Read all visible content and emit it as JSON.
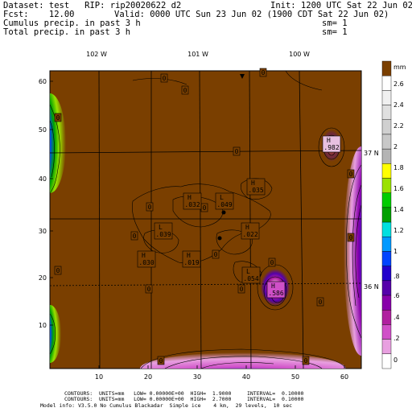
{
  "header": {
    "dataset_line": "Dataset: test   RIP: rip20020622 d2",
    "init_line": "Init: 1200 UTC Sat 22 Jun 02",
    "fcst_line": "Fcst:    12.00",
    "valid_line": "Valid: 0000 UTC Sun 23 Jun 02 (1900 CDT Sat 22 Jun 02)",
    "field1_line": "Cumulus precip. in past 3 h",
    "field1_sm": "sm= 1",
    "field2_line": "Total precip. in past 3 h",
    "field2_sm": "sm= 1"
  },
  "map": {
    "background_color": "#7a3f00",
    "longitude_labels": [
      "102 W",
      "101 W",
      "100 W"
    ],
    "latitude_labels": [
      "37 N",
      "36 N"
    ],
    "x_ticks": [
      "10",
      "20",
      "30",
      "40",
      "50",
      "60"
    ],
    "y_ticks": [
      "10",
      "20",
      "30",
      "40",
      "50",
      "60"
    ],
    "zero_labels": [
      "0",
      "0",
      "0",
      "0",
      "0",
      "0",
      "0",
      "0",
      "0",
      "0",
      "0",
      "0",
      "0",
      "0",
      "0",
      "0",
      "0",
      "0"
    ],
    "extrema": [
      {
        "kind": "H",
        "value": ".032"
      },
      {
        "kind": "L",
        "value": ".049"
      },
      {
        "kind": "H",
        "value": ".035"
      },
      {
        "kind": "L",
        "value": ".039"
      },
      {
        "kind": "H",
        "value": ".022"
      },
      {
        "kind": "H",
        "value": ".030"
      },
      {
        "kind": "H",
        "value": ".019"
      },
      {
        "kind": "L",
        "value": ".054"
      },
      {
        "kind": "H",
        "value": ".586"
      },
      {
        "kind": "H",
        "value": ".982"
      }
    ]
  },
  "colorbar": {
    "top_label": "mm",
    "labels": [
      "2.6",
      "2.4",
      "2.2",
      "2",
      "1.8",
      "1.6",
      "1.4",
      "1.2",
      "1",
      ".8",
      ".6",
      ".4",
      ".2",
      "0"
    ],
    "colors": [
      "#7a3f00",
      "#ffffff",
      "#f0f0f0",
      "#e0e0e0",
      "#d0d0d0",
      "#c8c8c8",
      "#b4b4b4",
      "#ffff00",
      "#9ae100",
      "#00cc00",
      "#00a000",
      "#00e0e0",
      "#0099ff",
      "#0044ff",
      "#2200cc",
      "#5500aa",
      "#8800aa",
      "#b0209f",
      "#d050c8",
      "#e8a0e0",
      "#ffffff"
    ]
  },
  "footer": {
    "line1": "CONTOURS:  UNITS=mm   LOW= 0.00000E+00  HIGH=  1.9000     INTERVAL=  0.10000",
    "line2": "CONTOURS:  UNITS=mm   LOW= 0.00000E+00  HIGH=  2.7000     INTERVAL=  0.10000",
    "line3": "Model info: V3.5.0 No Cumulus Blackadar  Simple ice    4 km,  29 levels,  10 sec"
  }
}
